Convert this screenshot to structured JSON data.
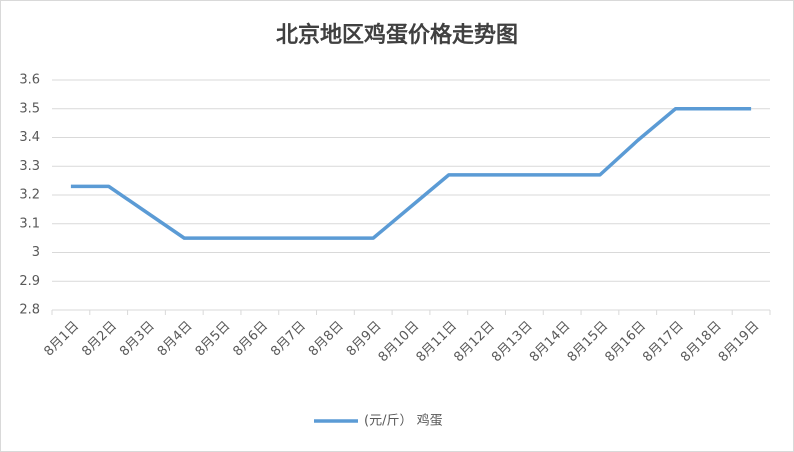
{
  "chart_data": {
    "type": "line",
    "title": "北京地区鸡蛋价格走势图",
    "categories": [
      "8月1日",
      "8月2日",
      "8月3日",
      "8月4日",
      "8月5日",
      "8月6日",
      "8月7日",
      "8月8日",
      "8月9日",
      "8月10日",
      "8月11日",
      "8月12日",
      "8月13日",
      "8月14日",
      "8月15日",
      "8月16日",
      "8月17日",
      "8月18日",
      "8月19日"
    ],
    "series": [
      {
        "name": "(元/斤） 鸡蛋",
        "color": "#5b9bd5",
        "values": [
          3.23,
          3.23,
          3.14,
          3.05,
          3.05,
          3.05,
          3.05,
          3.05,
          3.05,
          3.16,
          3.27,
          3.27,
          3.27,
          3.27,
          3.27,
          3.39,
          3.5,
          3.5,
          3.5
        ]
      }
    ],
    "ylim": [
      2.8,
      3.6
    ],
    "yticks": [
      2.8,
      2.9,
      3,
      3.1,
      3.2,
      3.3,
      3.4,
      3.5,
      3.6
    ],
    "grid": true,
    "legend": "bottom"
  }
}
